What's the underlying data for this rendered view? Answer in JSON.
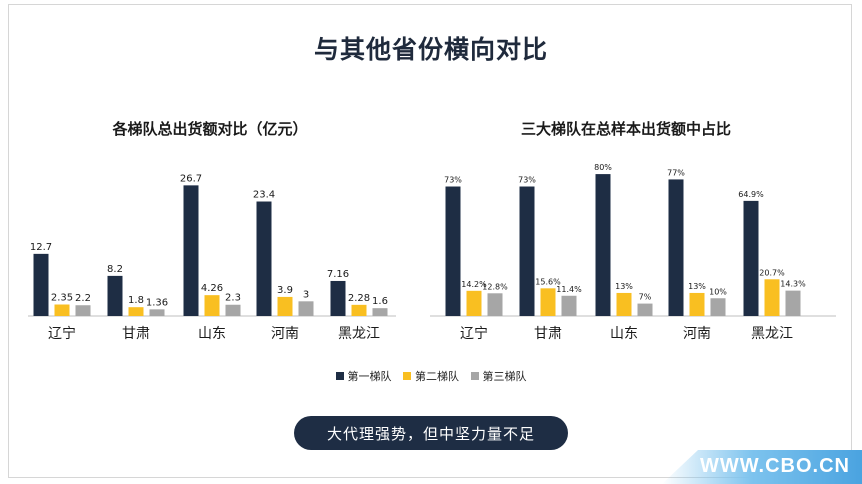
{
  "slide": {
    "title": "与其他省份横向对比",
    "callout": "大代理强势，但中坚力量不足",
    "watermark": "WWW.CBO.CN"
  },
  "legend": [
    "第一梯队",
    "第二梯队",
    "第三梯队"
  ],
  "colors": {
    "series1": "#1e2d44",
    "series2": "#f9bf21",
    "series3": "#a6a6a6",
    "axis": "#bfbfbf",
    "pill": "#1e2d44"
  },
  "chart_data": [
    {
      "type": "bar",
      "title": "各梯队总出货额对比（亿元）",
      "categories": [
        "辽宁",
        "甘肃",
        "山东",
        "河南",
        "黑龙江"
      ],
      "series": [
        {
          "name": "第一梯队",
          "values": [
            12.7,
            8.2,
            26.7,
            23.4,
            7.16
          ],
          "labels": [
            "12.7",
            "8.2",
            "26.7",
            "23.4",
            "7.16"
          ]
        },
        {
          "name": "第二梯队",
          "values": [
            2.35,
            1.8,
            4.26,
            3.9,
            2.28
          ],
          "labels": [
            "2.35",
            "1.8",
            "4.26",
            "3.9",
            "2.28"
          ]
        },
        {
          "name": "第三梯队",
          "values": [
            2.2,
            1.36,
            2.3,
            3,
            1.6
          ],
          "labels": [
            "2.2",
            "1.36",
            "2.3",
            "3",
            "1.6"
          ]
        }
      ],
      "ylim": [
        0,
        28
      ],
      "legend": "bottom",
      "grid": false
    },
    {
      "type": "bar",
      "title": "三大梯队在总样本出货额中占比",
      "categories": [
        "辽宁",
        "甘肃",
        "山东",
        "河南",
        "黑龙江"
      ],
      "series": [
        {
          "name": "第一梯队",
          "values": [
            73,
            73,
            80,
            77,
            64.9
          ],
          "labels": [
            "73%",
            "73%",
            "80%",
            "77%",
            "64.9%"
          ]
        },
        {
          "name": "第二梯队",
          "values": [
            14.2,
            15.6,
            13,
            13,
            20.7
          ],
          "labels": [
            "14.2%",
            "15.6%",
            "13%",
            "13%",
            "20.7%"
          ]
        },
        {
          "name": "第三梯队",
          "values": [
            12.8,
            11.4,
            7,
            10,
            14.3
          ],
          "labels": [
            "12.8%",
            "11.4%",
            "7%",
            "10%",
            "14.3%"
          ]
        }
      ],
      "ylim": [
        0,
        84
      ],
      "legend": "bottom",
      "grid": false
    }
  ]
}
